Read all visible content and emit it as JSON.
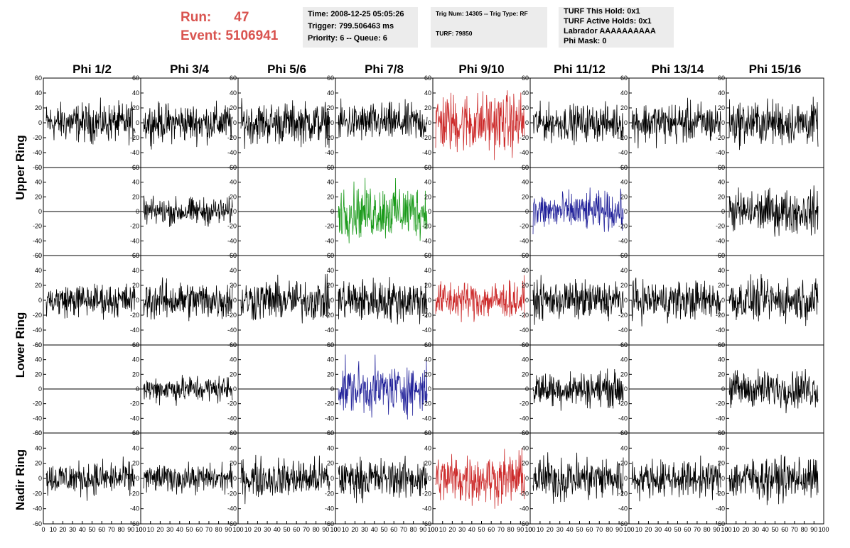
{
  "header": {
    "run_label": "Run:",
    "run_value": "47",
    "event_label": "Event:",
    "event_value": "5106941",
    "time_text": "Time: 2008-12-25 05:05:26",
    "trigger_text": "Trigger: 799.506463 ms",
    "priority_text": "Priority: 6 -- Queue: 6",
    "trig_num_text": "Trig Num: 14305 -- Trig Type: RF",
    "turf_text": "TURF: 79850",
    "turf_this_hold": "TURF This Hold: 0x1",
    "turf_active_holds": "TURF Active Holds: 0x1",
    "labrador": "Labrador AAAAAAAAAA",
    "phi_mask": "Phi Mask: 0"
  },
  "columns": [
    "Phi 1/2",
    "Phi 3/4",
    "Phi 5/6",
    "Phi 7/8",
    "Phi 9/10",
    "Phi 11/12",
    "Phi 13/14",
    "Phi 15/16"
  ],
  "rows": [
    "Upper Ring",
    "Lower Ring",
    "Nadir Ring"
  ],
  "colors": {
    "black": "#000000",
    "red": "#cc2a2a",
    "green": "#1a9a1a",
    "blue": "#22229a"
  },
  "panels": [
    {
      "row": 0,
      "col": 0,
      "color": "black",
      "amp": 14,
      "flat": false
    },
    {
      "row": 0,
      "col": 1,
      "color": "black",
      "amp": 14,
      "flat": false
    },
    {
      "row": 0,
      "col": 2,
      "color": "black",
      "amp": 15,
      "flat": false
    },
    {
      "row": 0,
      "col": 3,
      "color": "black",
      "amp": 14,
      "flat": false
    },
    {
      "row": 0,
      "col": 4,
      "color": "red",
      "amp": 22,
      "flat": false
    },
    {
      "row": 0,
      "col": 5,
      "color": "black",
      "amp": 13,
      "flat": false
    },
    {
      "row": 0,
      "col": 6,
      "color": "black",
      "amp": 15,
      "flat": false
    },
    {
      "row": 0,
      "col": 7,
      "color": "black",
      "amp": 16,
      "flat": false
    },
    {
      "row": 1,
      "col": 0,
      "color": "black",
      "amp": 0,
      "flat": true
    },
    {
      "row": 1,
      "col": 1,
      "color": "black",
      "amp": 10,
      "flat": false
    },
    {
      "row": 1,
      "col": 2,
      "color": "black",
      "amp": 0,
      "flat": true
    },
    {
      "row": 1,
      "col": 3,
      "color": "green",
      "amp": 20,
      "flat": false
    },
    {
      "row": 1,
      "col": 4,
      "color": "black",
      "amp": 0,
      "flat": true
    },
    {
      "row": 1,
      "col": 5,
      "color": "blue",
      "amp": 14,
      "flat": false
    },
    {
      "row": 1,
      "col": 6,
      "color": "black",
      "amp": 0,
      "flat": true
    },
    {
      "row": 1,
      "col": 7,
      "color": "black",
      "amp": 16,
      "flat": false
    },
    {
      "row": 2,
      "col": 0,
      "color": "black",
      "amp": 12,
      "flat": false
    },
    {
      "row": 2,
      "col": 1,
      "color": "black",
      "amp": 14,
      "flat": false
    },
    {
      "row": 2,
      "col": 2,
      "color": "black",
      "amp": 15,
      "flat": false
    },
    {
      "row": 2,
      "col": 3,
      "color": "black",
      "amp": 16,
      "flat": false
    },
    {
      "row": 2,
      "col": 4,
      "color": "red",
      "amp": 14,
      "flat": false
    },
    {
      "row": 2,
      "col": 5,
      "color": "black",
      "amp": 14,
      "flat": false
    },
    {
      "row": 2,
      "col": 6,
      "color": "black",
      "amp": 14,
      "flat": false
    },
    {
      "row": 2,
      "col": 7,
      "color": "black",
      "amp": 15,
      "flat": false
    },
    {
      "row": 3,
      "col": 0,
      "color": "black",
      "amp": 0,
      "flat": true
    },
    {
      "row": 3,
      "col": 1,
      "color": "black",
      "amp": 10,
      "flat": false
    },
    {
      "row": 3,
      "col": 2,
      "color": "black",
      "amp": 0,
      "flat": true
    },
    {
      "row": 3,
      "col": 3,
      "color": "blue",
      "amp": 18,
      "flat": false
    },
    {
      "row": 3,
      "col": 4,
      "color": "black",
      "amp": 0,
      "flat": true
    },
    {
      "row": 3,
      "col": 5,
      "color": "black",
      "amp": 13,
      "flat": false
    },
    {
      "row": 3,
      "col": 6,
      "color": "black",
      "amp": 0,
      "flat": true
    },
    {
      "row": 3,
      "col": 7,
      "color": "black",
      "amp": 14,
      "flat": false
    },
    {
      "row": 4,
      "col": 0,
      "color": "black",
      "amp": 12,
      "flat": false
    },
    {
      "row": 4,
      "col": 1,
      "color": "black",
      "amp": 10,
      "flat": false
    },
    {
      "row": 4,
      "col": 2,
      "color": "black",
      "amp": 14,
      "flat": false
    },
    {
      "row": 4,
      "col": 3,
      "color": "black",
      "amp": 14,
      "flat": false
    },
    {
      "row": 4,
      "col": 4,
      "color": "red",
      "amp": 18,
      "flat": false
    },
    {
      "row": 4,
      "col": 5,
      "color": "black",
      "amp": 16,
      "flat": false
    },
    {
      "row": 4,
      "col": 6,
      "color": "black",
      "amp": 13,
      "flat": false
    },
    {
      "row": 4,
      "col": 7,
      "color": "black",
      "amp": 15,
      "flat": false
    }
  ],
  "axes": {
    "y_ticks": [
      "60",
      "40",
      "20",
      "0",
      "-20",
      "-40",
      "-60"
    ],
    "x_ticks": [
      "0",
      "10",
      "20",
      "30",
      "40",
      "50",
      "60",
      "70",
      "80",
      "90",
      "100"
    ],
    "ylim": [
      -60,
      60
    ],
    "xlim": [
      0,
      100
    ]
  }
}
